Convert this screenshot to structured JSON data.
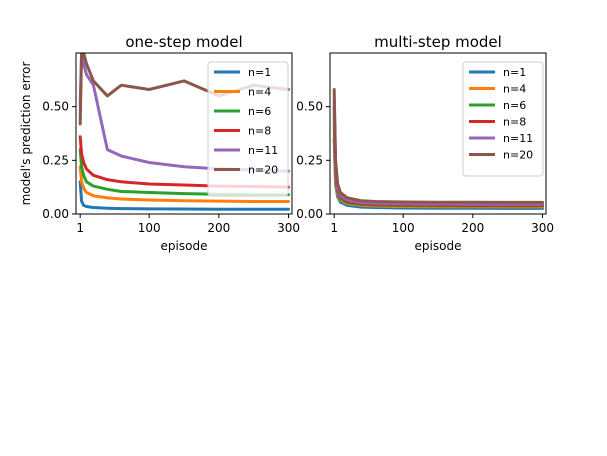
{
  "chart_data": [
    {
      "type": "line",
      "title": "one-step model",
      "xlabel": "episode",
      "ylabel": "model's prediction error",
      "xlim": [
        -5,
        305
      ],
      "ylim": [
        0.0,
        0.75
      ],
      "xticks": [
        1,
        100,
        200,
        300
      ],
      "xtick_labels": [
        "1",
        "100",
        "200",
        "300"
      ],
      "yticks": [
        0.0,
        0.25,
        0.5
      ],
      "ytick_labels": [
        "0.00",
        "0.25",
        "0.50"
      ],
      "grid": false,
      "legend_position": "top-right",
      "series": [
        {
          "name": "n=1",
          "color": "#1f77b4",
          "x": [
            1,
            3,
            6,
            10,
            20,
            40,
            60,
            100,
            150,
            200,
            250,
            300
          ],
          "y": [
            0.15,
            0.06,
            0.04,
            0.035,
            0.03,
            0.027,
            0.025,
            0.024,
            0.023,
            0.022,
            0.022,
            0.022
          ]
        },
        {
          "name": "n=4",
          "color": "#ff7f0e",
          "x": [
            1,
            3,
            6,
            10,
            20,
            40,
            60,
            100,
            150,
            200,
            250,
            300
          ],
          "y": [
            0.22,
            0.15,
            0.12,
            0.1,
            0.085,
            0.075,
            0.07,
            0.065,
            0.062,
            0.06,
            0.058,
            0.058
          ]
        },
        {
          "name": "n=6",
          "color": "#2ca02c",
          "x": [
            1,
            3,
            6,
            10,
            20,
            40,
            60,
            100,
            150,
            200,
            250,
            300
          ],
          "y": [
            0.3,
            0.22,
            0.18,
            0.15,
            0.13,
            0.115,
            0.105,
            0.1,
            0.095,
            0.092,
            0.09,
            0.09
          ]
        },
        {
          "name": "n=8",
          "color": "#d62728",
          "x": [
            1,
            3,
            6,
            10,
            20,
            40,
            60,
            100,
            150,
            200,
            250,
            300
          ],
          "y": [
            0.36,
            0.28,
            0.24,
            0.21,
            0.18,
            0.16,
            0.15,
            0.14,
            0.135,
            0.13,
            0.128,
            0.125
          ]
        },
        {
          "name": "n=11",
          "color": "#9467bd",
          "x": [
            1,
            3,
            6,
            10,
            20,
            30,
            40,
            60,
            100,
            150,
            200,
            250,
            300
          ],
          "y": [
            0.5,
            0.75,
            0.7,
            0.65,
            0.6,
            0.45,
            0.3,
            0.27,
            0.24,
            0.22,
            0.21,
            0.205,
            0.2
          ]
        },
        {
          "name": "n=20",
          "color": "#8c564b",
          "x": [
            1,
            3,
            6,
            10,
            20,
            40,
            60,
            100,
            150,
            200,
            250,
            300
          ],
          "y": [
            0.42,
            0.75,
            0.75,
            0.7,
            0.62,
            0.55,
            0.6,
            0.58,
            0.62,
            0.55,
            0.6,
            0.58
          ]
        }
      ]
    },
    {
      "type": "line",
      "title": "multi-step model",
      "xlabel": "episode",
      "ylabel": "",
      "xlim": [
        -5,
        305
      ],
      "ylim": [
        0.0,
        0.75
      ],
      "xticks": [
        1,
        100,
        200,
        300
      ],
      "xtick_labels": [
        "1",
        "100",
        "200",
        "300"
      ],
      "yticks": [
        0.0,
        0.25,
        0.5
      ],
      "ytick_labels": [
        "0.00",
        "0.25",
        "0.50"
      ],
      "grid": false,
      "legend_position": "top-right",
      "series": [
        {
          "name": "n=1",
          "color": "#1f77b4",
          "x": [
            1,
            3,
            6,
            10,
            20,
            40,
            60,
            100,
            150,
            200,
            250,
            300
          ],
          "y": [
            0.35,
            0.14,
            0.08,
            0.055,
            0.04,
            0.032,
            0.03,
            0.028,
            0.027,
            0.027,
            0.026,
            0.026
          ]
        },
        {
          "name": "n=4",
          "color": "#ff7f0e",
          "x": [
            1,
            3,
            6,
            10,
            20,
            40,
            60,
            100,
            150,
            200,
            250,
            300
          ],
          "y": [
            0.4,
            0.16,
            0.09,
            0.065,
            0.048,
            0.04,
            0.037,
            0.035,
            0.034,
            0.034,
            0.033,
            0.033
          ]
        },
        {
          "name": "n=6",
          "color": "#2ca02c",
          "x": [
            1,
            3,
            6,
            10,
            20,
            40,
            60,
            100,
            150,
            200,
            250,
            300
          ],
          "y": [
            0.45,
            0.18,
            0.1,
            0.07,
            0.052,
            0.044,
            0.041,
            0.039,
            0.038,
            0.037,
            0.037,
            0.037
          ]
        },
        {
          "name": "n=8",
          "color": "#d62728",
          "x": [
            1,
            3,
            6,
            10,
            20,
            40,
            60,
            100,
            150,
            200,
            250,
            300
          ],
          "y": [
            0.5,
            0.2,
            0.11,
            0.078,
            0.058,
            0.048,
            0.045,
            0.043,
            0.042,
            0.041,
            0.041,
            0.041
          ]
        },
        {
          "name": "n=11",
          "color": "#9467bd",
          "x": [
            1,
            3,
            6,
            10,
            20,
            40,
            60,
            100,
            150,
            200,
            250,
            300
          ],
          "y": [
            0.54,
            0.22,
            0.12,
            0.085,
            0.065,
            0.053,
            0.05,
            0.048,
            0.047,
            0.046,
            0.046,
            0.046
          ]
        },
        {
          "name": "n=20",
          "color": "#8c564b",
          "x": [
            1,
            3,
            6,
            10,
            20,
            40,
            60,
            100,
            150,
            200,
            250,
            300
          ],
          "y": [
            0.58,
            0.25,
            0.14,
            0.1,
            0.075,
            0.062,
            0.058,
            0.056,
            0.055,
            0.055,
            0.054,
            0.054
          ]
        }
      ]
    }
  ]
}
